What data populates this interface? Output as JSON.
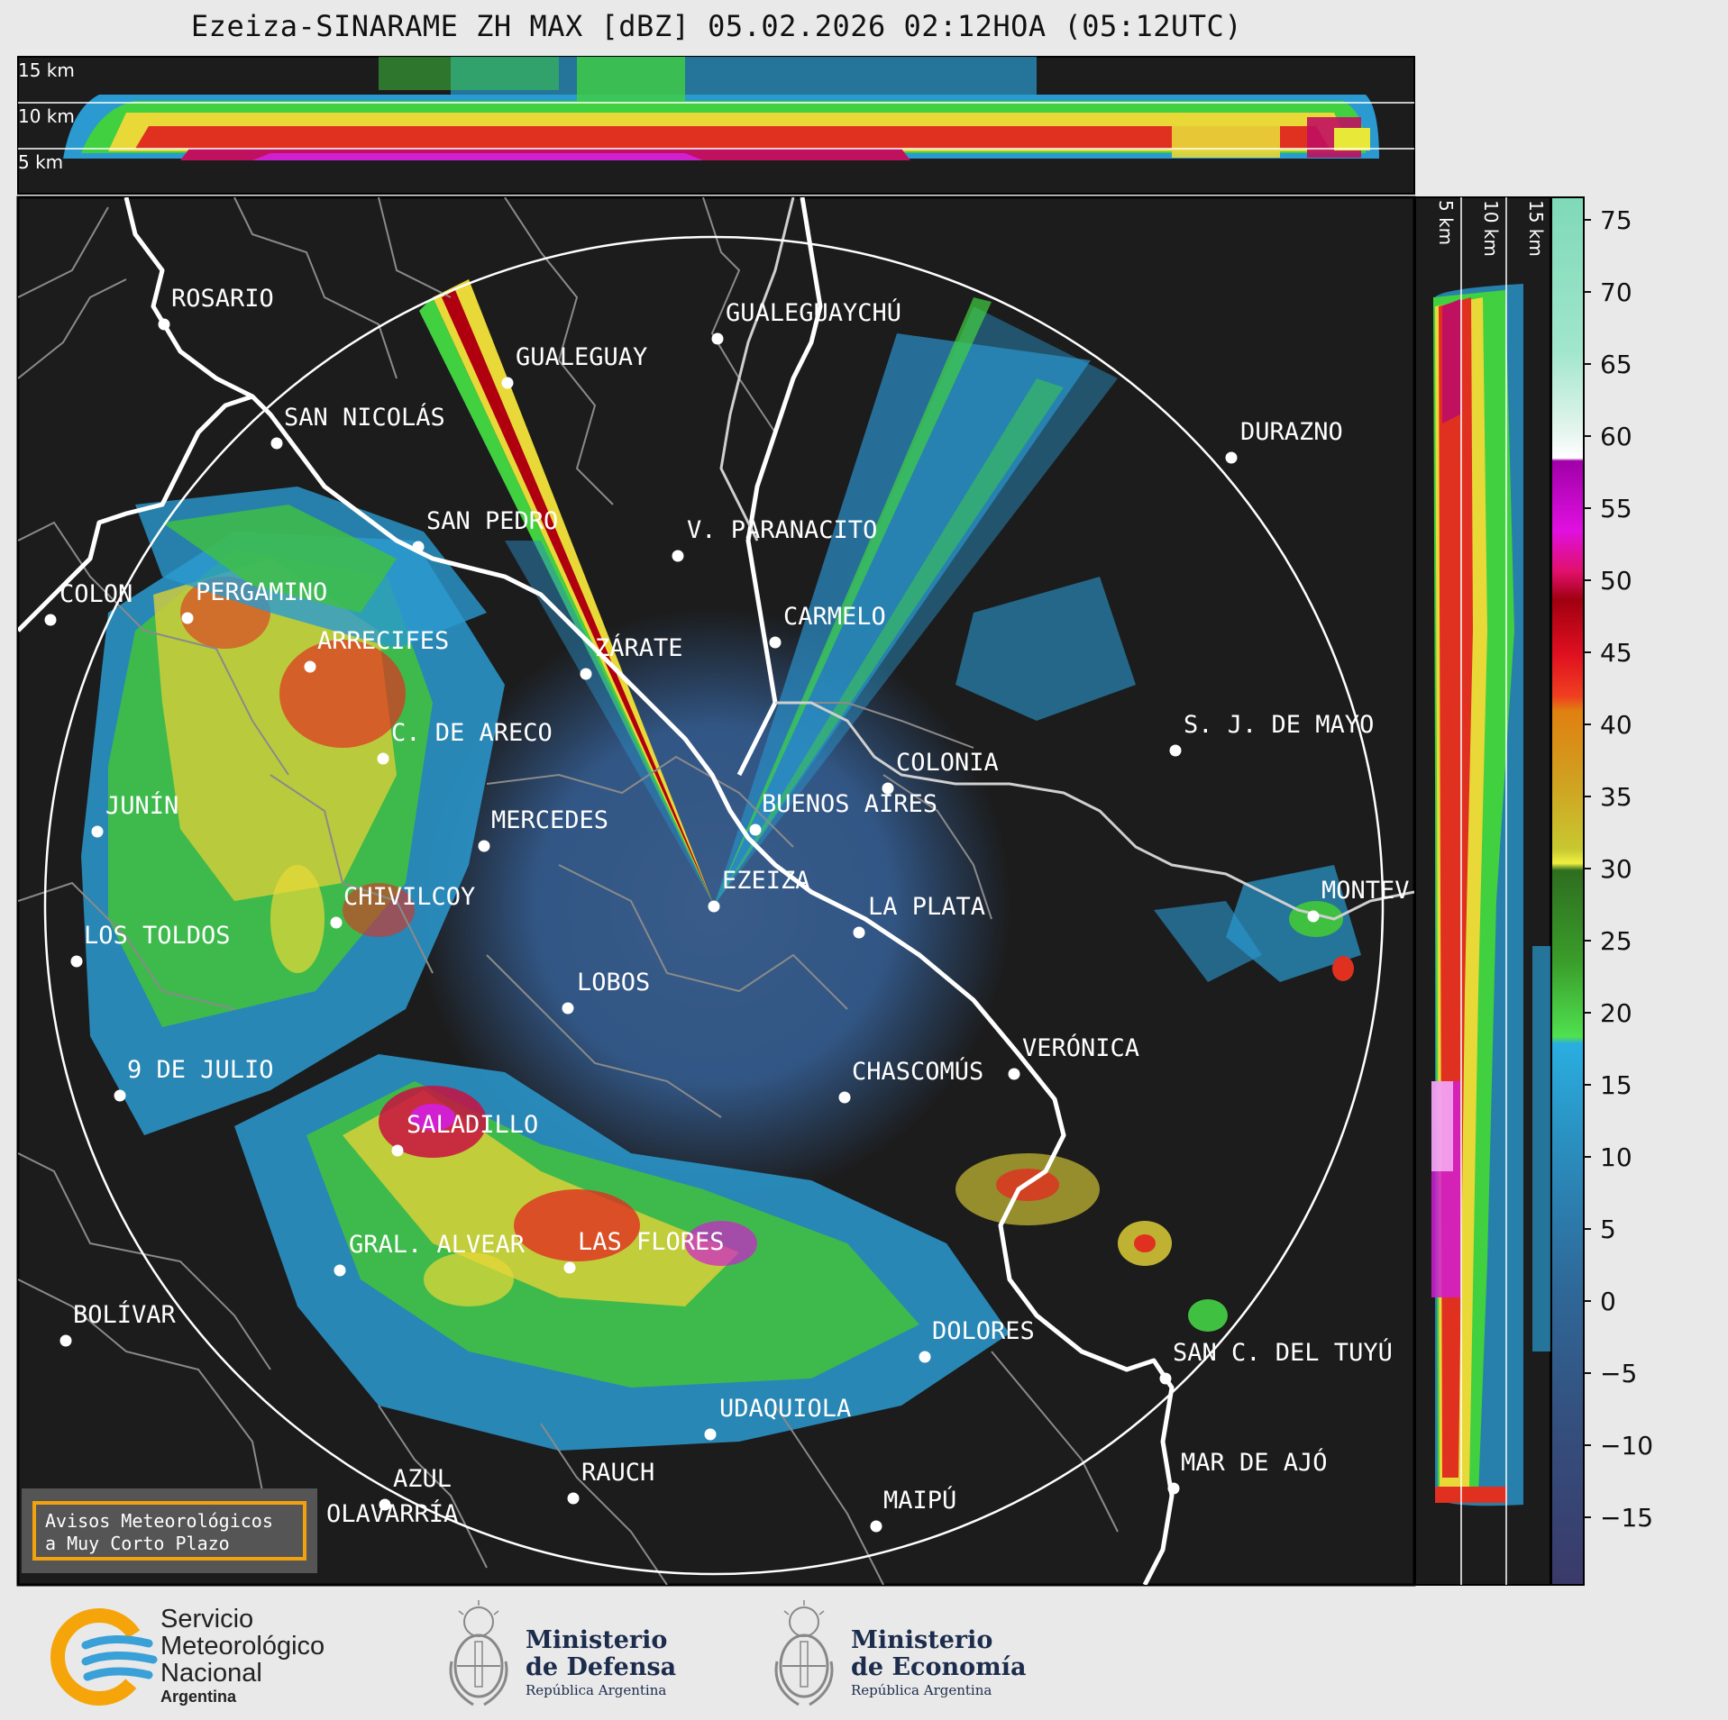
{
  "header": {
    "title": "Ezeiza-SINARAME ZH MAX [dBZ] 05.02.2026 02:12HOA (05:12UTC)"
  },
  "top_panel": {
    "height_labels": [
      "15 km",
      "10 km",
      "5 km"
    ]
  },
  "right_panel": {
    "height_labels": [
      "5 km",
      "10 km",
      "15 km"
    ]
  },
  "colorbar": {
    "ticks": [
      "75",
      "70",
      "65",
      "60",
      "55",
      "50",
      "45",
      "40",
      "35",
      "30",
      "25",
      "20",
      "15",
      "10",
      "5",
      "0",
      "−5",
      "−10",
      "−15"
    ],
    "unit": "dBZ"
  },
  "cities": [
    {
      "name": "ROSARIO"
    },
    {
      "name": "GUALEGUAYCHÚ"
    },
    {
      "name": "GUALEGUAY"
    },
    {
      "name": "SAN NICOLÁS"
    },
    {
      "name": "DURAZNO"
    },
    {
      "name": "SAN PEDRO"
    },
    {
      "name": "V. PARANACITO"
    },
    {
      "name": "COLON"
    },
    {
      "name": "PERGAMINO"
    },
    {
      "name": "CARMELO"
    },
    {
      "name": "ARRECIFES"
    },
    {
      "name": "ZÁRATE"
    },
    {
      "name": "S. J. DE MAYO"
    },
    {
      "name": "C. DE ARECO"
    },
    {
      "name": "COLONIA"
    },
    {
      "name": "JUNÍN"
    },
    {
      "name": "BUENOS AIRES"
    },
    {
      "name": "MERCEDES"
    },
    {
      "name": "EZEIZA"
    },
    {
      "name": "MONTEV"
    },
    {
      "name": "CHIVILCOY"
    },
    {
      "name": "LA PLATA"
    },
    {
      "name": "LOS TOLDOS"
    },
    {
      "name": "LOBOS"
    },
    {
      "name": "VERÓNICA"
    },
    {
      "name": "9 DE JULIO"
    },
    {
      "name": "CHASCOMÚS"
    },
    {
      "name": "SALADILLO"
    },
    {
      "name": "GRAL. ALVEAR"
    },
    {
      "name": "LAS FLORES"
    },
    {
      "name": "BOLÍVAR"
    },
    {
      "name": "DOLORES"
    },
    {
      "name": "SAN C. DEL TUYÚ"
    },
    {
      "name": "UDAQUIOLA"
    },
    {
      "name": "AZUL"
    },
    {
      "name": "RAUCH"
    },
    {
      "name": "MAR DE AJÓ"
    },
    {
      "name": "OLAVARRÍA"
    },
    {
      "name": "MAIPÚ"
    }
  ],
  "notice": {
    "line1": "Avisos Meteorológicos",
    "line2": "a Muy Corto Plazo"
  },
  "logos": {
    "smn": {
      "line1": "Servicio",
      "line2": "Meteorológico",
      "line3": "Nacional",
      "line4": "Argentina"
    },
    "defensa": {
      "line1": "Ministerio",
      "line2": "de Defensa",
      "line3": "República Argentina"
    },
    "economia": {
      "line1": "Ministerio",
      "line2": "de Economía",
      "line3": "República Argentina"
    }
  },
  "colors": {
    "background": "#1c1c1c",
    "coast": "#ffffff",
    "borders": "#8a8a8a",
    "notice_border": "#f2a20c"
  }
}
